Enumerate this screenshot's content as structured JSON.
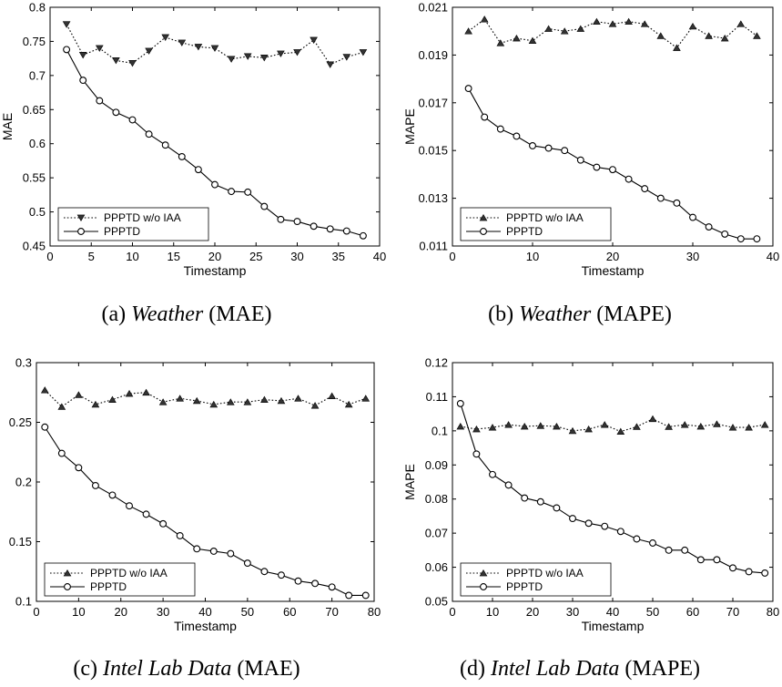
{
  "chart_data": [
    {
      "type": "line",
      "caption_tag": "(a)",
      "caption_dataset": "Weather",
      "caption_metric": "(MAE)",
      "xlabel": "Timestamp",
      "ylabel": "MAE",
      "xlim": [
        0,
        40
      ],
      "ylim": [
        0.45,
        0.8
      ],
      "xticks": [
        0,
        5,
        10,
        15,
        20,
        25,
        30,
        35,
        40
      ],
      "yticks": [
        "0.45",
        "0.5",
        "0.55",
        "0.6",
        "0.65",
        "0.7",
        "0.75",
        "0.8"
      ],
      "legend_position": "lower-left",
      "series": [
        {
          "name": "PPPTD w/o IAA",
          "marker": "triangle-down",
          "linestyle": "dotted",
          "x": [
            2,
            4,
            6,
            8,
            10,
            12,
            14,
            16,
            18,
            20,
            22,
            24,
            26,
            28,
            30,
            32,
            34,
            36,
            38
          ],
          "y": [
            0.775,
            0.73,
            0.74,
            0.722,
            0.718,
            0.736,
            0.756,
            0.748,
            0.742,
            0.74,
            0.724,
            0.728,
            0.726,
            0.732,
            0.734,
            0.752,
            0.716,
            0.727,
            0.734
          ]
        },
        {
          "name": "PPPTD",
          "marker": "circle",
          "linestyle": "solid",
          "x": [
            2,
            4,
            6,
            8,
            10,
            12,
            14,
            16,
            18,
            20,
            22,
            24,
            26,
            28,
            30,
            32,
            34,
            36,
            38
          ],
          "y": [
            0.738,
            0.693,
            0.663,
            0.646,
            0.635,
            0.614,
            0.598,
            0.581,
            0.562,
            0.54,
            0.53,
            0.529,
            0.508,
            0.489,
            0.486,
            0.479,
            0.475,
            0.472,
            0.465
          ]
        }
      ]
    },
    {
      "type": "line",
      "caption_tag": "(b)",
      "caption_dataset": "Weather",
      "caption_metric": "(MAPE)",
      "xlabel": "Timestamp",
      "ylabel": "MAPE",
      "xlim": [
        0,
        40
      ],
      "ylim": [
        0.011,
        0.021
      ],
      "xticks": [
        0,
        10,
        20,
        30,
        40
      ],
      "yticks": [
        "0.011",
        "0.013",
        "0.015",
        "0.017",
        "0.019",
        "0.021"
      ],
      "legend_position": "lower-left",
      "series": [
        {
          "name": "PPPTD w/o IAA",
          "marker": "triangle-up",
          "linestyle": "dotted",
          "x": [
            2,
            4,
            6,
            8,
            10,
            12,
            14,
            16,
            18,
            20,
            22,
            24,
            26,
            28,
            30,
            32,
            34,
            36,
            38
          ],
          "y": [
            0.02,
            0.0205,
            0.0195,
            0.0197,
            0.0196,
            0.0201,
            0.02,
            0.0201,
            0.0204,
            0.0203,
            0.0204,
            0.0203,
            0.0198,
            0.0193,
            0.0202,
            0.0198,
            0.0197,
            0.0203,
            0.0198
          ]
        },
        {
          "name": "PPPTD",
          "marker": "circle",
          "linestyle": "solid",
          "x": [
            2,
            4,
            6,
            8,
            10,
            12,
            14,
            16,
            18,
            20,
            22,
            24,
            26,
            28,
            30,
            32,
            34,
            36,
            38
          ],
          "y": [
            0.0176,
            0.0164,
            0.0159,
            0.0156,
            0.0152,
            0.0151,
            0.015,
            0.0146,
            0.0143,
            0.0142,
            0.0138,
            0.0134,
            0.013,
            0.0128,
            0.0122,
            0.0118,
            0.0115,
            0.0113,
            0.0113
          ]
        }
      ]
    },
    {
      "type": "line",
      "caption_tag": "(c)",
      "caption_dataset": "Intel Lab Data",
      "caption_metric": "(MAE)",
      "xlabel": "Timestamp",
      "ylabel": "MAE",
      "xlim": [
        0,
        80
      ],
      "ylim": [
        0.1,
        0.3
      ],
      "xticks": [
        0,
        10,
        20,
        30,
        40,
        50,
        60,
        70,
        80
      ],
      "yticks": [
        "0.1",
        "0.15",
        "0.2",
        "0.25",
        "0.3"
      ],
      "legend_position": "lower-left",
      "series": [
        {
          "name": "PPPTD w/o IAA",
          "marker": "triangle-up",
          "linestyle": "dotted",
          "x": [
            2,
            6,
            10,
            14,
            18,
            22,
            26,
            30,
            34,
            38,
            42,
            46,
            50,
            54,
            58,
            62,
            66,
            70,
            74,
            78
          ],
          "y": [
            0.277,
            0.263,
            0.273,
            0.265,
            0.269,
            0.274,
            0.275,
            0.267,
            0.27,
            0.268,
            0.265,
            0.267,
            0.267,
            0.269,
            0.268,
            0.27,
            0.264,
            0.272,
            0.265,
            0.27
          ]
        },
        {
          "name": "PPPTD",
          "marker": "circle",
          "linestyle": "solid",
          "x": [
            2,
            6,
            10,
            14,
            18,
            22,
            26,
            30,
            34,
            38,
            42,
            46,
            50,
            54,
            58,
            62,
            66,
            70,
            74,
            78
          ],
          "y": [
            0.246,
            0.224,
            0.212,
            0.197,
            0.189,
            0.18,
            0.173,
            0.165,
            0.155,
            0.144,
            0.142,
            0.14,
            0.132,
            0.125,
            0.122,
            0.117,
            0.115,
            0.112,
            0.105,
            0.105
          ]
        }
      ]
    },
    {
      "type": "line",
      "caption_tag": "(d)",
      "caption_dataset": "Intel Lab Data",
      "caption_metric": "(MAPE)",
      "xlabel": "Timestamp",
      "ylabel": "MAPE",
      "xlim": [
        0,
        80
      ],
      "ylim": [
        0.05,
        0.12
      ],
      "xticks": [
        0,
        10,
        20,
        30,
        40,
        50,
        60,
        70,
        80
      ],
      "yticks": [
        "0.05",
        "0.06",
        "0.07",
        "0.08",
        "0.09",
        "0.1",
        "0.11",
        "0.12"
      ],
      "legend_position": "lower-left",
      "series": [
        {
          "name": "PPPTD w/o IAA",
          "marker": "triangle-up",
          "linestyle": "dotted",
          "x": [
            2,
            6,
            10,
            14,
            18,
            22,
            26,
            30,
            34,
            38,
            42,
            46,
            50,
            54,
            58,
            62,
            66,
            70,
            74,
            78
          ],
          "y": [
            0.1013,
            0.1005,
            0.101,
            0.1018,
            0.1013,
            0.1015,
            0.1013,
            0.1,
            0.1005,
            0.1018,
            0.0998,
            0.1012,
            0.1035,
            0.1012,
            0.1018,
            0.1013,
            0.102,
            0.101,
            0.101,
            0.1018
          ]
        },
        {
          "name": "PPPTD",
          "marker": "circle",
          "linestyle": "solid",
          "x": [
            2,
            6,
            10,
            14,
            18,
            22,
            26,
            30,
            34,
            38,
            42,
            46,
            50,
            54,
            58,
            62,
            66,
            70,
            74,
            78
          ],
          "y": [
            0.108,
            0.0932,
            0.0872,
            0.0841,
            0.0803,
            0.0792,
            0.0774,
            0.0743,
            0.0729,
            0.072,
            0.0705,
            0.0683,
            0.0671,
            0.065,
            0.065,
            0.0622,
            0.0622,
            0.0598,
            0.0587,
            0.0583
          ]
        }
      ]
    }
  ]
}
